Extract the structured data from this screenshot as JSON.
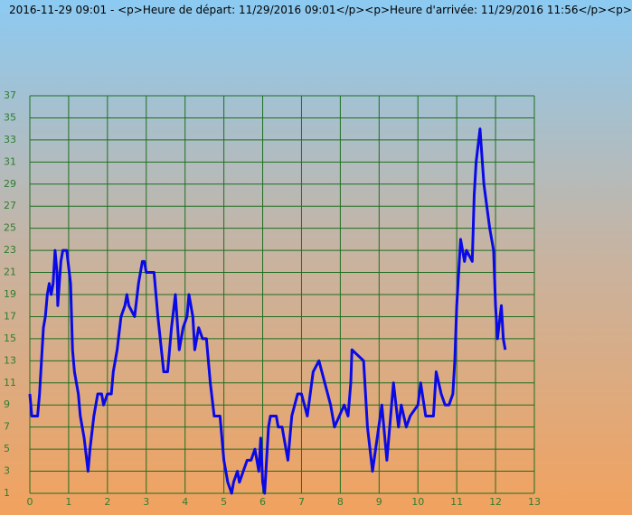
{
  "chart_data": {
    "type": "line",
    "title": "2016-11-29 09:01 - <p>Heure de départ: 11/29/2016 09:01</p><p>Heure d'arrivée: 11/29/2016 11:56</p><p>",
    "xlim": [
      0,
      13
    ],
    "xticks": [
      0,
      1,
      2,
      3,
      4,
      5,
      6,
      7,
      8,
      9,
      10,
      11,
      12,
      13
    ],
    "ylim": [
      1,
      37
    ],
    "yticks": [
      1,
      3,
      5,
      7,
      9,
      11,
      13,
      15,
      17,
      19,
      21,
      23,
      25,
      27,
      29,
      31,
      33,
      35,
      37
    ],
    "grid": true,
    "grid_color": "#1f6e1f",
    "series": [
      {
        "color": "#0a0ae6",
        "x": [
          0,
          0.05,
          0.2,
          0.25,
          0.3,
          0.35,
          0.4,
          0.45,
          0.5,
          0.55,
          0.6,
          0.65,
          0.7,
          0.72,
          0.8,
          0.85,
          0.95,
          1.05,
          1.1,
          1.15,
          1.25,
          1.3,
          1.4,
          1.5,
          1.55,
          1.65,
          1.75,
          1.85,
          1.9,
          2.0,
          2.1,
          2.15,
          2.25,
          2.35,
          2.45,
          2.5,
          2.55,
          2.7,
          2.8,
          2.9,
          2.95,
          3.0,
          3.2,
          3.3,
          3.45,
          3.55,
          3.65,
          3.75,
          3.85,
          3.95,
          4.05,
          4.1,
          4.2,
          4.25,
          4.35,
          4.45,
          4.55,
          4.65,
          4.75,
          4.9,
          5.0,
          5.1,
          5.2,
          5.25,
          5.35,
          5.4,
          5.5,
          5.6,
          5.7,
          5.8,
          5.9,
          5.95,
          6.0,
          6.05,
          6.1,
          6.15,
          6.2,
          6.35,
          6.4,
          6.5,
          6.55,
          6.65,
          6.7,
          6.75,
          6.9,
          7.0,
          7.15,
          7.3,
          7.45,
          7.6,
          7.75,
          7.85,
          8.1,
          8.2,
          8.27,
          8.3,
          8.6,
          8.7,
          8.83,
          9.07,
          9.2,
          9.37,
          9.5,
          9.57,
          9.7,
          9.8,
          10.0,
          10.07,
          10.2,
          10.4,
          10.47,
          10.6,
          10.7,
          10.8,
          10.9,
          10.95,
          11.0,
          11.1,
          11.2,
          11.25,
          11.4,
          11.45,
          11.5,
          11.6,
          11.7,
          11.85,
          11.95,
          12.0,
          12.05,
          12.15,
          12.2,
          12.25
        ],
        "values": [
          10,
          8,
          8,
          10,
          13,
          16,
          17,
          19,
          20,
          19,
          20,
          23,
          21,
          18,
          22,
          23,
          23,
          20,
          14,
          12,
          10,
          8,
          6,
          3,
          5,
          8,
          10,
          10,
          9,
          10,
          10,
          12,
          14,
          17,
          18,
          19,
          18,
          17,
          20,
          22,
          22,
          21,
          21,
          17,
          12,
          12,
          16,
          19,
          14,
          16,
          17,
          19,
          17,
          14,
          16,
          15,
          15,
          11,
          8,
          8,
          4,
          2,
          1,
          2,
          3,
          2,
          3,
          4,
          4,
          5,
          3,
          6,
          2,
          1,
          4,
          7,
          8,
          8,
          7,
          7,
          6,
          4,
          6,
          8,
          10,
          10,
          8,
          12,
          13,
          11,
          9,
          7,
          9,
          8,
          11,
          14,
          13,
          7,
          3,
          9,
          4,
          11,
          7,
          9,
          7,
          8,
          9,
          11,
          8,
          8,
          12,
          10,
          9,
          9,
          10,
          13,
          18,
          24,
          22,
          23,
          22,
          28,
          31,
          34,
          29,
          25,
          23,
          18,
          15,
          18,
          15,
          14
        ]
      }
    ]
  }
}
